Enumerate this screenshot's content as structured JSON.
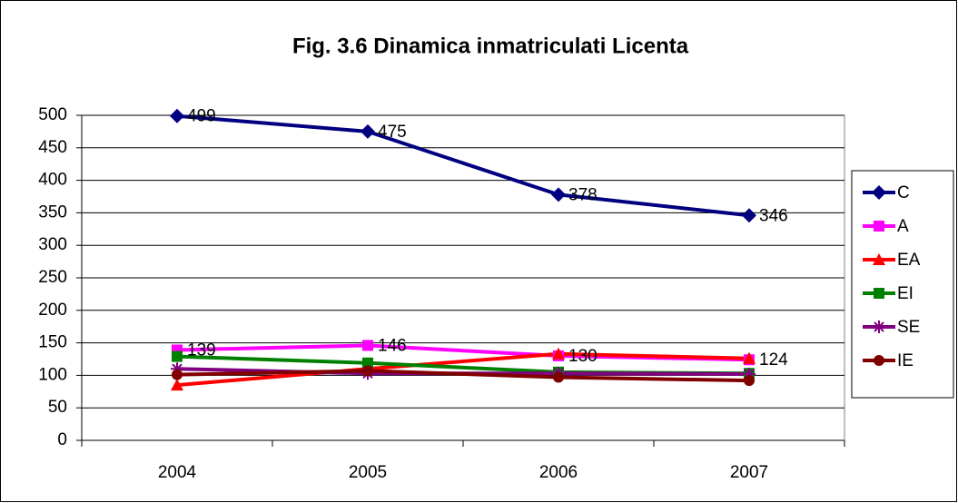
{
  "chart_data": {
    "type": "line",
    "title": "Fig. 3.6 Dinamica inmatriculati Licenta",
    "categories": [
      "2004",
      "2005",
      "2006",
      "2007"
    ],
    "series": [
      {
        "name": "C",
        "color": "#000080",
        "marker": "diamond",
        "labels": true,
        "values": [
          499,
          475,
          378,
          346
        ]
      },
      {
        "name": "A",
        "color": "#ff00ff",
        "marker": "square",
        "labels": true,
        "values": [
          139,
          146,
          130,
          124
        ]
      },
      {
        "name": "EA",
        "color": "#ff0000",
        "marker": "triangle",
        "labels": false,
        "values": [
          85,
          110,
          133,
          126
        ]
      },
      {
        "name": "EI",
        "color": "#008000",
        "marker": "square",
        "labels": false,
        "values": [
          129,
          119,
          105,
          103
        ]
      },
      {
        "name": "SE",
        "color": "#800080",
        "marker": "star",
        "labels": false,
        "values": [
          110,
          103,
          103,
          102
        ]
      },
      {
        "name": "IE",
        "color": "#800000",
        "marker": "circle",
        "labels": false,
        "values": [
          101,
          107,
          97,
          92
        ]
      }
    ],
    "ylim": [
      0,
      500
    ],
    "yticks": [
      0,
      50,
      100,
      150,
      200,
      250,
      300,
      350,
      400,
      450,
      500
    ],
    "grid": true,
    "legend": "right"
  }
}
